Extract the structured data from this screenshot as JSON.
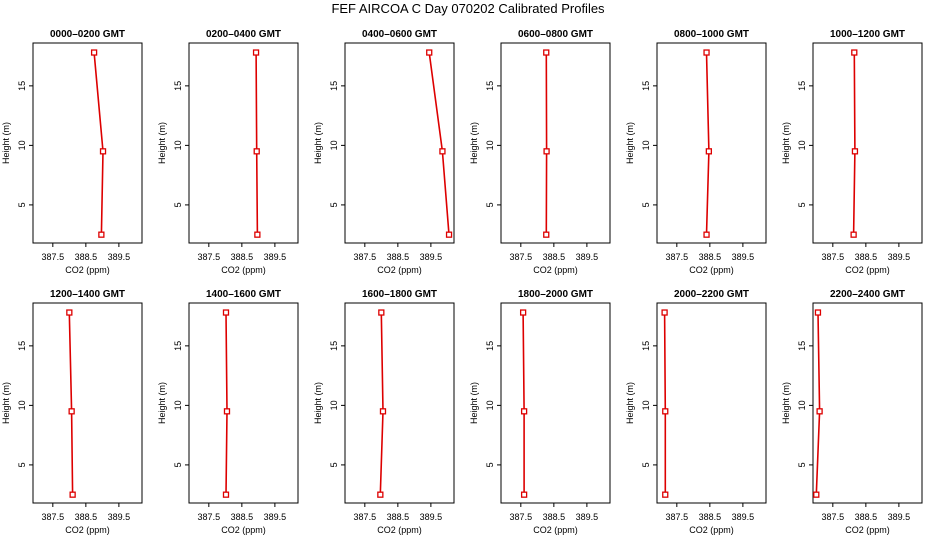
{
  "title": "FEF AIRCOA C  Day 070202  Calibrated Profiles",
  "style": {
    "series_color": "#dd0000",
    "axis_color": "#000000"
  },
  "chart_data": [
    {
      "type": "line",
      "title": "0000–0200 GMT",
      "xlabel": "CO2 (ppm)",
      "ylabel": "Height (m)",
      "xlim": [
        386.9,
        390.2
      ],
      "ylim": [
        1.8,
        18.6
      ],
      "xticks": [
        387.5,
        388.5,
        389.5
      ],
      "xtick_labels": [
        "387.5",
        "388.5",
        "389.5"
      ],
      "yticks": [
        5,
        10,
        15
      ],
      "ytick_labels": [
        "5",
        "10",
        "15"
      ],
      "series": [
        {
          "x": [
            388.75,
            389.02,
            388.97
          ],
          "y": [
            17.8,
            9.5,
            2.5
          ]
        }
      ]
    },
    {
      "type": "line",
      "title": "0200–0400 GMT",
      "xlabel": "CO2 (ppm)",
      "ylabel": "Height (m)",
      "xlim": [
        386.9,
        390.2
      ],
      "ylim": [
        1.8,
        18.6
      ],
      "xticks": [
        387.5,
        388.5,
        389.5
      ],
      "xtick_labels": [
        "387.5",
        "388.5",
        "389.5"
      ],
      "yticks": [
        5,
        10,
        15
      ],
      "ytick_labels": [
        "5",
        "10",
        "15"
      ],
      "series": [
        {
          "x": [
            388.93,
            388.95,
            388.97
          ],
          "y": [
            17.8,
            9.5,
            2.5
          ]
        }
      ]
    },
    {
      "type": "line",
      "title": "0400–0600 GMT",
      "xlabel": "CO2 (ppm)",
      "ylabel": "Height (m)",
      "xlim": [
        386.9,
        390.2
      ],
      "ylim": [
        1.8,
        18.6
      ],
      "xticks": [
        387.5,
        388.5,
        389.5
      ],
      "xtick_labels": [
        "387.5",
        "388.5",
        "389.5"
      ],
      "yticks": [
        5,
        10,
        15
      ],
      "ytick_labels": [
        "5",
        "10",
        "15"
      ],
      "series": [
        {
          "x": [
            389.45,
            389.85,
            390.05
          ],
          "y": [
            17.8,
            9.5,
            2.5
          ]
        }
      ]
    },
    {
      "type": "line",
      "title": "0600–0800 GMT",
      "xlabel": "CO2 (ppm)",
      "ylabel": "Height (m)",
      "xlim": [
        386.9,
        390.2
      ],
      "ylim": [
        1.8,
        18.6
      ],
      "xticks": [
        387.5,
        388.5,
        389.5
      ],
      "xtick_labels": [
        "387.5",
        "388.5",
        "389.5"
      ],
      "yticks": [
        5,
        10,
        15
      ],
      "ytick_labels": [
        "5",
        "10",
        "15"
      ],
      "series": [
        {
          "x": [
            388.27,
            388.28,
            388.27
          ],
          "y": [
            17.8,
            9.5,
            2.5
          ]
        }
      ]
    },
    {
      "type": "line",
      "title": "0800–1000 GMT",
      "xlabel": "CO2 (ppm)",
      "ylabel": "Height (m)",
      "xlim": [
        386.9,
        390.2
      ],
      "ylim": [
        1.8,
        18.6
      ],
      "xticks": [
        387.5,
        388.5,
        389.5
      ],
      "xtick_labels": [
        "387.5",
        "388.5",
        "389.5"
      ],
      "yticks": [
        5,
        10,
        15
      ],
      "ytick_labels": [
        "5",
        "10",
        "15"
      ],
      "series": [
        {
          "x": [
            388.4,
            388.47,
            388.4
          ],
          "y": [
            17.8,
            9.5,
            2.5
          ]
        }
      ]
    },
    {
      "type": "line",
      "title": "1000–1200 GMT",
      "xlabel": "CO2 (ppm)",
      "ylabel": "Height (m)",
      "xlim": [
        386.9,
        390.2
      ],
      "ylim": [
        1.8,
        18.6
      ],
      "xticks": [
        387.5,
        388.5,
        389.5
      ],
      "xtick_labels": [
        "387.5",
        "388.5",
        "389.5"
      ],
      "yticks": [
        5,
        10,
        15
      ],
      "ytick_labels": [
        "5",
        "10",
        "15"
      ],
      "series": [
        {
          "x": [
            388.15,
            388.17,
            388.13
          ],
          "y": [
            17.8,
            9.5,
            2.5
          ]
        }
      ]
    },
    {
      "type": "line",
      "title": "1200–1400 GMT",
      "xlabel": "CO2 (ppm)",
      "ylabel": "Height (m)",
      "xlim": [
        386.9,
        390.2
      ],
      "ylim": [
        1.8,
        18.6
      ],
      "xticks": [
        387.5,
        388.5,
        389.5
      ],
      "xtick_labels": [
        "387.5",
        "388.5",
        "389.5"
      ],
      "yticks": [
        5,
        10,
        15
      ],
      "ytick_labels": [
        "5",
        "10",
        "15"
      ],
      "series": [
        {
          "x": [
            388.0,
            388.07,
            388.1
          ],
          "y": [
            17.8,
            9.5,
            2.5
          ]
        }
      ]
    },
    {
      "type": "line",
      "title": "1400–1600 GMT",
      "xlabel": "CO2 (ppm)",
      "ylabel": "Height (m)",
      "xlim": [
        386.9,
        390.2
      ],
      "ylim": [
        1.8,
        18.6
      ],
      "xticks": [
        387.5,
        388.5,
        389.5
      ],
      "xtick_labels": [
        "387.5",
        "388.5",
        "389.5"
      ],
      "yticks": [
        5,
        10,
        15
      ],
      "ytick_labels": [
        "5",
        "10",
        "15"
      ],
      "series": [
        {
          "x": [
            388.02,
            388.05,
            388.02
          ],
          "y": [
            17.8,
            9.5,
            2.5
          ]
        }
      ]
    },
    {
      "type": "line",
      "title": "1600–1800 GMT",
      "xlabel": "CO2 (ppm)",
      "ylabel": "Height (m)",
      "xlim": [
        386.9,
        390.2
      ],
      "ylim": [
        1.8,
        18.6
      ],
      "xticks": [
        387.5,
        388.5,
        389.5
      ],
      "xtick_labels": [
        "387.5",
        "388.5",
        "389.5"
      ],
      "yticks": [
        5,
        10,
        15
      ],
      "ytick_labels": [
        "5",
        "10",
        "15"
      ],
      "series": [
        {
          "x": [
            388.0,
            388.05,
            387.97
          ],
          "y": [
            17.8,
            9.5,
            2.5
          ]
        }
      ]
    },
    {
      "type": "line",
      "title": "1800–2000 GMT",
      "xlabel": "CO2 (ppm)",
      "ylabel": "Height (m)",
      "xlim": [
        386.9,
        390.2
      ],
      "ylim": [
        1.8,
        18.6
      ],
      "xticks": [
        387.5,
        388.5,
        389.5
      ],
      "xtick_labels": [
        "387.5",
        "388.5",
        "389.5"
      ],
      "yticks": [
        5,
        10,
        15
      ],
      "ytick_labels": [
        "5",
        "10",
        "15"
      ],
      "series": [
        {
          "x": [
            387.57,
            387.6,
            387.6
          ],
          "y": [
            17.8,
            9.5,
            2.5
          ]
        }
      ]
    },
    {
      "type": "line",
      "title": "2000–2200 GMT",
      "xlabel": "CO2 (ppm)",
      "ylabel": "Height (m)",
      "xlim": [
        386.9,
        390.2
      ],
      "ylim": [
        1.8,
        18.6
      ],
      "xticks": [
        387.5,
        388.5,
        389.5
      ],
      "xtick_labels": [
        "387.5",
        "388.5",
        "389.5"
      ],
      "yticks": [
        5,
        10,
        15
      ],
      "ytick_labels": [
        "5",
        "10",
        "15"
      ],
      "series": [
        {
          "x": [
            387.13,
            387.15,
            387.15
          ],
          "y": [
            17.8,
            9.5,
            2.5
          ]
        }
      ]
    },
    {
      "type": "line",
      "title": "2200–2400 GMT",
      "xlabel": "CO2 (ppm)",
      "ylabel": "Height (m)",
      "xlim": [
        386.9,
        390.2
      ],
      "ylim": [
        1.8,
        18.6
      ],
      "xticks": [
        387.5,
        388.5,
        389.5
      ],
      "xtick_labels": [
        "387.5",
        "388.5",
        "389.5"
      ],
      "yticks": [
        5,
        10,
        15
      ],
      "ytick_labels": [
        "5",
        "10",
        "15"
      ],
      "series": [
        {
          "x": [
            387.05,
            387.1,
            387.0
          ],
          "y": [
            17.8,
            9.5,
            2.5
          ]
        }
      ]
    }
  ]
}
